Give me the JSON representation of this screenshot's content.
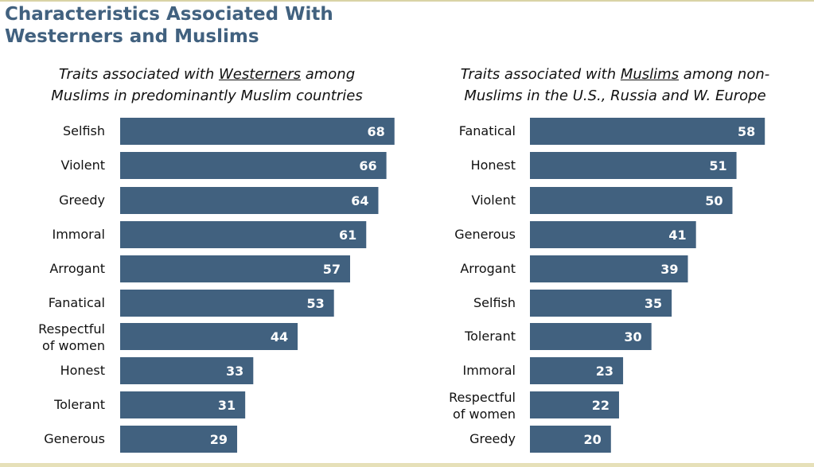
{
  "title_line1": "Characteristics Associated With",
  "title_line2": "Westerners and Muslims",
  "colors": {
    "bar": "#41617f",
    "title": "#41617f",
    "label": "#111111",
    "value": "#ffffff"
  },
  "left_subtitle": {
    "pre": "Traits associated with ",
    "emph": "Westerners",
    "post": " among",
    "line2": "Muslims in predominantly Muslim countries"
  },
  "right_subtitle": {
    "pre": "Traits associated with ",
    "emph": "Muslims",
    "post": " among non-",
    "line2": "Muslims in the U.S., Russia and W. Europe"
  },
  "chart_data": [
    {
      "type": "bar",
      "orientation": "horizontal",
      "categories": [
        "Selfish",
        "Violent",
        "Greedy",
        "Immoral",
        "Arrogant",
        "Fanatical",
        "Respectful of women",
        "Honest",
        "Tolerant",
        "Generous"
      ],
      "category_lines": [
        [
          "Selfish"
        ],
        [
          "Violent"
        ],
        [
          "Greedy"
        ],
        [
          "Immoral"
        ],
        [
          "Arrogant"
        ],
        [
          "Fanatical"
        ],
        [
          "Respectful",
          "of women"
        ],
        [
          "Honest"
        ],
        [
          "Tolerant"
        ],
        [
          "Generous"
        ]
      ],
      "values": [
        68,
        66,
        64,
        61,
        57,
        53,
        44,
        33,
        31,
        29
      ],
      "value_labels": true
    },
    {
      "type": "bar",
      "orientation": "horizontal",
      "categories": [
        "Fanatical",
        "Honest",
        "Violent",
        "Generous",
        "Arrogant",
        "Selfish",
        "Tolerant",
        "Immoral",
        "Respectful of women",
        "Greedy"
      ],
      "category_lines": [
        [
          "Fanatical"
        ],
        [
          "Honest"
        ],
        [
          "Violent"
        ],
        [
          "Generous"
        ],
        [
          "Arrogant"
        ],
        [
          "Selfish"
        ],
        [
          "Tolerant"
        ],
        [
          "Immoral"
        ],
        [
          "Respectful",
          "of women"
        ],
        [
          "Greedy"
        ]
      ],
      "values": [
        58,
        51,
        50,
        41,
        39,
        35,
        30,
        23,
        22,
        20
      ],
      "value_labels": true
    }
  ]
}
